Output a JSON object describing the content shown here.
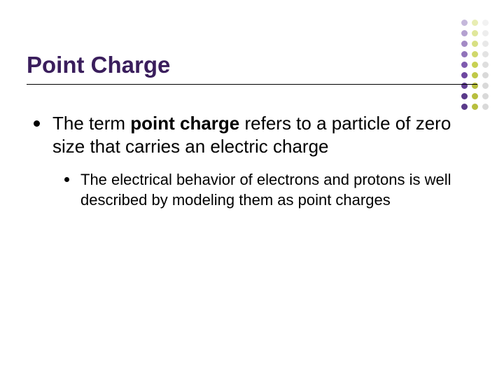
{
  "title": "Point Charge",
  "title_color": "#3a1e5c",
  "title_fontsize": 33,
  "background_color": "#ffffff",
  "divider_color": "#000000",
  "main_bullet": {
    "prefix": "The term ",
    "bold": "point charge",
    "suffix": " refers to a particle of zero size that carries an electric charge",
    "fontsize": 26,
    "color": "#000000"
  },
  "sub_bullet": {
    "text": "The electrical behavior of electrons and protons is well described by modeling them as point charges",
    "fontsize": 22,
    "color": "#000000"
  },
  "bullet_marker_color": "#000000",
  "decoration": {
    "columns": 3,
    "dots_per_column": 9,
    "dot_size": 9,
    "gap": 6,
    "column_colors": [
      "#5a3a8a",
      "#b8bf3e",
      "#d9d9d9"
    ],
    "gradient_top_light": true
  }
}
